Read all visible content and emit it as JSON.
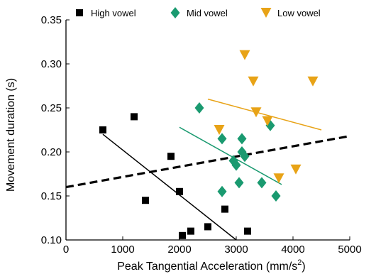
{
  "chart_data": {
    "type": "scatter",
    "title": "",
    "xlabel": "Peak Tangential Acceleration (mm/s",
    "xlabel_superscript": "2",
    "xlabel_close": ")",
    "ylabel": "Movement duration (s)",
    "xlim": [
      0,
      5000
    ],
    "ylim": [
      0.1,
      0.35
    ],
    "x_ticks": [
      0,
      1000,
      2000,
      3000,
      4000,
      5000
    ],
    "x_tick_labels": [
      "0",
      "1000",
      "2000",
      "3000",
      "4000",
      "5000"
    ],
    "y_ticks": [
      0.1,
      0.15,
      0.2,
      0.25,
      0.3,
      0.35
    ],
    "y_tick_labels": [
      "0.10",
      "0.15",
      "0.20",
      "0.25",
      "0.30",
      "0.35"
    ],
    "grid": false,
    "legend_position": "top",
    "series": [
      {
        "name": "High vowel",
        "marker": "square",
        "color": "#000000",
        "points": [
          [
            650,
            0.225
          ],
          [
            1200,
            0.24
          ],
          [
            1400,
            0.145
          ],
          [
            1850,
            0.195
          ],
          [
            2000,
            0.155
          ],
          [
            2050,
            0.105
          ],
          [
            2200,
            0.11
          ],
          [
            2500,
            0.115
          ],
          [
            2800,
            0.135
          ],
          [
            3200,
            0.11
          ]
        ],
        "fit": [
          [
            650,
            0.22
          ],
          [
            3000,
            0.1
          ]
        ]
      },
      {
        "name": "Mid vowel",
        "marker": "diamond",
        "color": "#1a9a70",
        "points": [
          [
            2350,
            0.25
          ],
          [
            2750,
            0.215
          ],
          [
            2750,
            0.155
          ],
          [
            2950,
            0.19
          ],
          [
            3000,
            0.185
          ],
          [
            3050,
            0.165
          ],
          [
            3100,
            0.215
          ],
          [
            3100,
            0.2
          ],
          [
            3150,
            0.195
          ],
          [
            3450,
            0.165
          ],
          [
            3600,
            0.23
          ],
          [
            3700,
            0.15
          ]
        ],
        "fit": [
          [
            2000,
            0.228
          ],
          [
            3800,
            0.163
          ]
        ]
      },
      {
        "name": "Low vowel",
        "marker": "triangle-down",
        "color": "#e8a317",
        "points": [
          [
            2700,
            0.225
          ],
          [
            3150,
            0.31
          ],
          [
            3300,
            0.28
          ],
          [
            3350,
            0.245
          ],
          [
            3550,
            0.235
          ],
          [
            3750,
            0.17
          ],
          [
            4050,
            0.18
          ],
          [
            4350,
            0.28
          ]
        ],
        "fit": [
          [
            2500,
            0.26
          ],
          [
            4500,
            0.225
          ]
        ]
      }
    ],
    "overall_fit": {
      "style": "dashed",
      "color": "#000000",
      "points": [
        [
          0,
          0.16
        ],
        [
          5000,
          0.218
        ]
      ]
    }
  }
}
